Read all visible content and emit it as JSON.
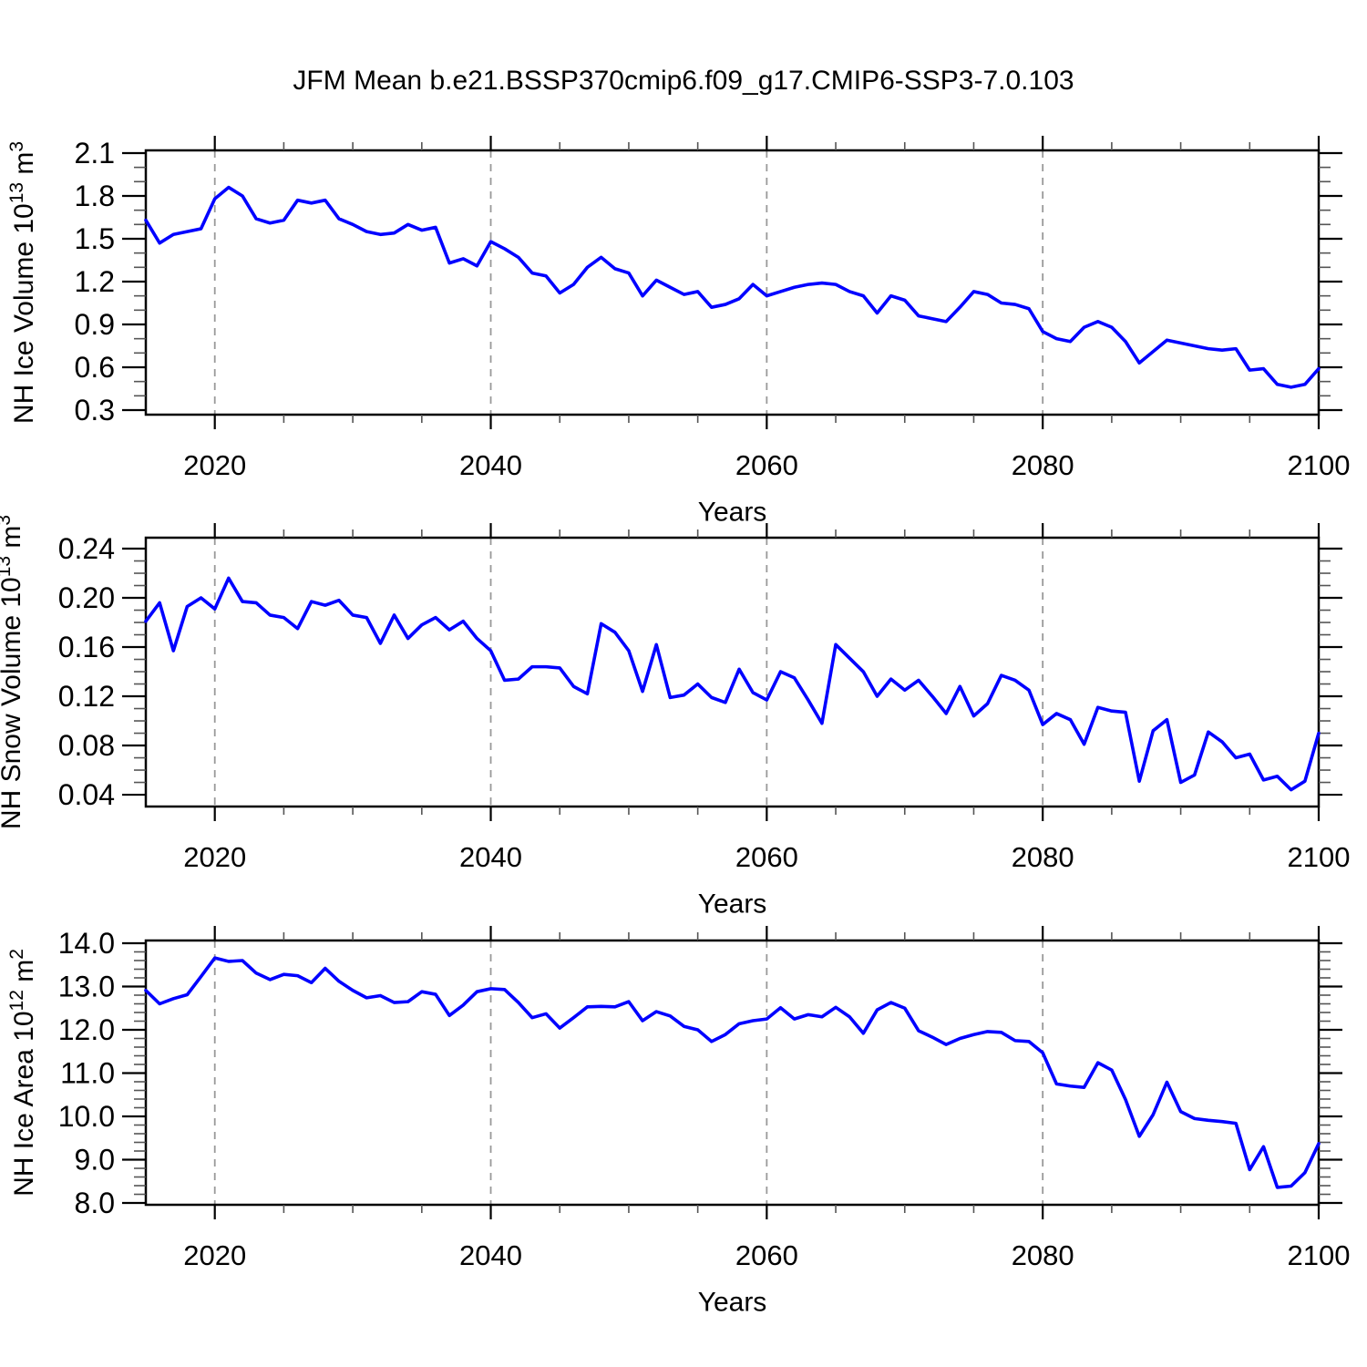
{
  "title": "JFM Mean b.e21.BSSP370cmip6.f09_g17.CMIP6-SSP3-7.0.103",
  "colors": {
    "line": "#0000FF",
    "axis": "#000000",
    "gridline": "#999999",
    "minor_tick": "#555555"
  },
  "x_axis": {
    "label": "Years",
    "first_year": 2015,
    "last_year": 2100,
    "major_ticks": [
      2020,
      2040,
      2060,
      2080,
      2100
    ],
    "minor_step": 5,
    "gridline_years": [
      2020,
      2040,
      2060,
      2080
    ]
  },
  "chart_data": [
    {
      "id": "nh-ice-volume",
      "type": "line",
      "xlabel": "Years",
      "ylabel": "NH Ice Volume 10^13 m^3",
      "ylabel_parts": [
        {
          "t": "NH Ice Volume 10"
        },
        {
          "t": "13",
          "sup": true
        },
        {
          "t": " m"
        },
        {
          "t": "3",
          "sup": true
        }
      ],
      "ylim": [
        0.268,
        2.119
      ],
      "yticks": [
        0.3,
        0.6,
        0.9,
        1.2,
        1.5,
        1.8,
        2.1
      ],
      "ytick_labels": [
        "0.3",
        "0.6",
        "0.9",
        "1.2",
        "1.5",
        "1.8",
        "2.1"
      ],
      "y_minor_step": 0.1,
      "x_first": 2015,
      "x_step": 1,
      "values": [
        1.63,
        1.47,
        1.53,
        1.55,
        1.57,
        1.78,
        1.86,
        1.8,
        1.64,
        1.61,
        1.63,
        1.77,
        1.75,
        1.77,
        1.64,
        1.6,
        1.55,
        1.53,
        1.54,
        1.6,
        1.56,
        1.58,
        1.33,
        1.36,
        1.31,
        1.48,
        1.43,
        1.37,
        1.26,
        1.24,
        1.12,
        1.18,
        1.3,
        1.37,
        1.29,
        1.26,
        1.1,
        1.21,
        1.16,
        1.11,
        1.13,
        1.02,
        1.04,
        1.08,
        1.18,
        1.1,
        1.13,
        1.16,
        1.18,
        1.19,
        1.18,
        1.13,
        1.1,
        0.98,
        1.1,
        1.07,
        0.96,
        0.94,
        0.92,
        1.02,
        1.13,
        1.11,
        1.05,
        1.04,
        1.01,
        0.85,
        0.8,
        0.78,
        0.88,
        0.92,
        0.88,
        0.78,
        0.63,
        0.71,
        0.79,
        0.77,
        0.75,
        0.73,
        0.72,
        0.73,
        0.58,
        0.59,
        0.48,
        0.46,
        0.48,
        0.59
      ]
    },
    {
      "id": "nh-snow-volume",
      "type": "line",
      "xlabel": "Years",
      "ylabel": "NH Snow Volume 10^13 m^3",
      "ylabel_parts": [
        {
          "t": "NH Snow Volume 10"
        },
        {
          "t": "13",
          "sup": true
        },
        {
          "t": " m"
        },
        {
          "t": "3",
          "sup": true
        }
      ],
      "ylim": [
        0.0304,
        0.2489
      ],
      "yticks": [
        0.04,
        0.08,
        0.12,
        0.16,
        0.2,
        0.24
      ],
      "ytick_labels": [
        "0.04",
        "0.08",
        "0.12",
        "0.16",
        "0.20",
        "0.24"
      ],
      "y_minor_step": 0.01,
      "x_first": 2015,
      "x_step": 1,
      "values": [
        0.181,
        0.196,
        0.157,
        0.193,
        0.2,
        0.191,
        0.216,
        0.197,
        0.196,
        0.186,
        0.184,
        0.175,
        0.197,
        0.194,
        0.198,
        0.186,
        0.184,
        0.163,
        0.186,
        0.167,
        0.178,
        0.184,
        0.174,
        0.181,
        0.167,
        0.157,
        0.133,
        0.134,
        0.144,
        0.144,
        0.143,
        0.128,
        0.122,
        0.179,
        0.172,
        0.157,
        0.124,
        0.162,
        0.119,
        0.121,
        0.13,
        0.119,
        0.115,
        0.142,
        0.123,
        0.117,
        0.14,
        0.135,
        0.117,
        0.098,
        0.162,
        0.151,
        0.14,
        0.12,
        0.134,
        0.125,
        0.133,
        0.12,
        0.106,
        0.128,
        0.104,
        0.114,
        0.137,
        0.133,
        0.125,
        0.097,
        0.106,
        0.101,
        0.081,
        0.111,
        0.108,
        0.107,
        0.051,
        0.092,
        0.101,
        0.05,
        0.056,
        0.091,
        0.083,
        0.07,
        0.073,
        0.052,
        0.055,
        0.044,
        0.051,
        0.09
      ]
    },
    {
      "id": "nh-ice-area",
      "type": "line",
      "xlabel": "Years",
      "ylabel": "NH Ice Area 10^12 m^2",
      "ylabel_parts": [
        {
          "t": "NH Ice Area 10"
        },
        {
          "t": "12",
          "sup": true
        },
        {
          "t": " m"
        },
        {
          "t": "2",
          "sup": true
        }
      ],
      "ylim": [
        7.958,
        14.063
      ],
      "yticks": [
        8.0,
        9.0,
        10.0,
        11.0,
        12.0,
        13.0,
        14.0
      ],
      "ytick_labels": [
        "8.0",
        "9.0",
        "10.0",
        "11.0",
        "12.0",
        "13.0",
        "14.0"
      ],
      "y_minor_step": 0.2,
      "x_first": 2015,
      "x_step": 1,
      "values": [
        12.91,
        12.6,
        12.72,
        12.81,
        13.23,
        13.66,
        13.58,
        13.6,
        13.31,
        13.16,
        13.28,
        13.25,
        13.09,
        13.42,
        13.12,
        12.91,
        12.74,
        12.79,
        12.63,
        12.65,
        12.88,
        12.82,
        12.33,
        12.57,
        12.88,
        12.95,
        12.93,
        12.63,
        12.28,
        12.37,
        12.04,
        12.28,
        12.53,
        12.54,
        12.53,
        12.65,
        12.21,
        12.42,
        12.32,
        12.08,
        12.0,
        11.73,
        11.89,
        12.14,
        12.21,
        12.25,
        12.51,
        12.25,
        12.35,
        12.3,
        12.52,
        12.3,
        11.92,
        12.46,
        12.63,
        12.5,
        11.98,
        11.83,
        11.66,
        11.8,
        11.89,
        11.96,
        11.94,
        11.75,
        11.73,
        11.47,
        10.75,
        10.7,
        10.67,
        11.24,
        11.07,
        10.39,
        9.54,
        10.04,
        10.79,
        10.11,
        9.95,
        9.91,
        9.88,
        9.84,
        8.77,
        9.3,
        8.36,
        8.39,
        8.7,
        9.37
      ]
    }
  ]
}
